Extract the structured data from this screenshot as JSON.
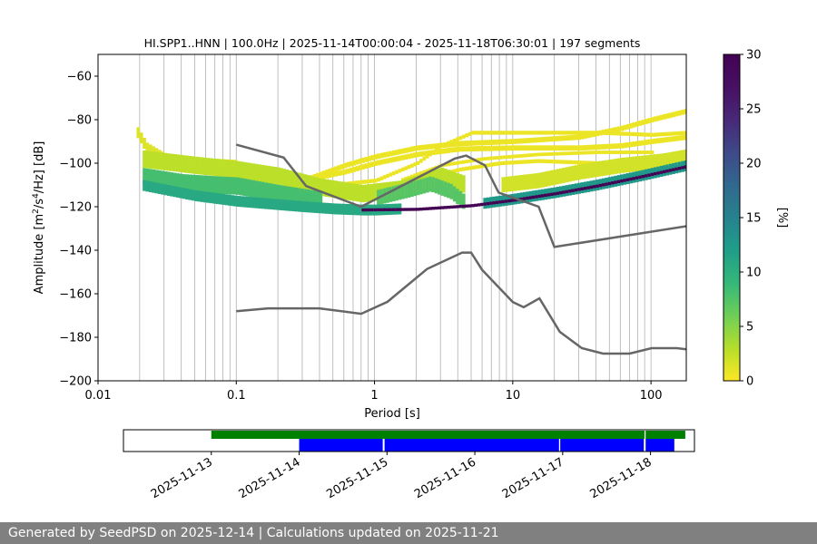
{
  "chart_data": [
    {
      "type": "heatmap",
      "title": "HI.SPP1..HNN | 100.0Hz | 2025-11-14T00:00:04 - 2025-11-18T06:30:01 | 197 segments",
      "xlabel": "Period [s]",
      "ylabel_main": "Amplitude [m",
      "ylabel_sup1": "2",
      "ylabel_mid": "/s",
      "ylabel_sup2": "4",
      "ylabel_end": "/Hz] [dB]",
      "x_scale": "log",
      "xlim": [
        0.01,
        180
      ],
      "ylim": [
        -200,
        -50
      ],
      "x_ticks": [
        {
          "value": 0.01,
          "label": "0.01"
        },
        {
          "value": 0.1,
          "label": "0.1"
        },
        {
          "value": 1,
          "label": "1"
        },
        {
          "value": 10,
          "label": "10"
        },
        {
          "value": 100,
          "label": "100"
        }
      ],
      "y_ticks": [
        {
          "value": -60,
          "label": "−60"
        },
        {
          "value": -80,
          "label": "−80"
        },
        {
          "value": -100,
          "label": "−100"
        },
        {
          "value": -120,
          "label": "−120"
        },
        {
          "value": -140,
          "label": "−140"
        },
        {
          "value": -160,
          "label": "−160"
        },
        {
          "value": -180,
          "label": "−180"
        },
        {
          "value": -200,
          "label": "−200"
        }
      ],
      "grid": "vertical lines at log-scale periods",
      "grid_periods": [
        0.02,
        0.03,
        0.04,
        0.05,
        0.06,
        0.07,
        0.08,
        0.09,
        0.1,
        0.2,
        0.3,
        0.4,
        0.5,
        0.6,
        0.7,
        0.8,
        0.9,
        1,
        2,
        3,
        4,
        5,
        6,
        7,
        8,
        9,
        10,
        20,
        30,
        40,
        50,
        60,
        70,
        80,
        90,
        100
      ],
      "colorbar": {
        "label": "[%]",
        "range": [
          0,
          30
        ],
        "ticks": [
          {
            "value": 0,
            "label": "0"
          },
          {
            "value": 5,
            "label": "5"
          },
          {
            "value": 10,
            "label": "10"
          },
          {
            "value": 15,
            "label": "15"
          },
          {
            "value": 20,
            "label": "20"
          },
          {
            "value": 25,
            "label": "25"
          },
          {
            "value": 30,
            "label": "30"
          }
        ],
        "colormap": "viridis_r"
      },
      "noise_model_color": "#666666",
      "high_noise_model": [
        [
          0.1,
          -91.5
        ],
        [
          0.22,
          -97.4
        ],
        [
          0.32,
          -110.5
        ],
        [
          0.8,
          -120
        ],
        [
          3.8,
          -97.9
        ],
        [
          4.6,
          -96.5
        ],
        [
          6.3,
          -101
        ],
        [
          7.9,
          -113.5
        ],
        [
          15.4,
          -120
        ],
        [
          20,
          -138.5
        ],
        [
          354.8,
          -126
        ],
        [
          10000.0,
          -80.1
        ]
      ],
      "low_noise_model": [
        [
          0.1,
          -168
        ],
        [
          0.17,
          -166.7
        ],
        [
          0.4,
          -166.7
        ],
        [
          0.8,
          -169.2
        ],
        [
          1.24,
          -163.7
        ],
        [
          2.4,
          -148.6
        ],
        [
          4.3,
          -141.1
        ],
        [
          5,
          -141.1
        ],
        [
          6,
          -149
        ],
        [
          10,
          -163.8
        ],
        [
          12,
          -166.2
        ],
        [
          15.6,
          -162.1
        ],
        [
          21.9,
          -177.5
        ],
        [
          31.6,
          -185
        ],
        [
          45,
          -187.5
        ],
        [
          70,
          -187.5
        ],
        [
          101,
          -185
        ],
        [
          154,
          -185
        ],
        [
          328,
          -187.5
        ]
      ],
      "density_bands": [
        {
          "name": "mode",
          "pct": 30,
          "points": [
            [
              0.8,
              -121.5
            ],
            [
              2,
              -121.2
            ],
            [
              5,
              -119.5
            ],
            [
              10,
              -117
            ],
            [
              20,
              -114
            ],
            [
              40,
              -110.5
            ],
            [
              80,
              -106.5
            ],
            [
              180,
              -101.5
            ]
          ],
          "halfwidth": 0.7
        },
        {
          "name": "body-low",
          "pct": 12,
          "points": [
            [
              0.02,
              -110
            ],
            [
              0.05,
              -115
            ],
            [
              0.1,
              -117.5
            ],
            [
              0.3,
              -120
            ],
            [
              0.5,
              -121
            ],
            [
              0.8,
              -121.5
            ],
            [
              1,
              -121.5
            ],
            [
              1.5,
              -121
            ]
          ],
          "halfwidth": 2.5
        },
        {
          "name": "mode-halo",
          "pct": 14,
          "points": [
            [
              6,
              -118.5
            ],
            [
              10,
              -116.5
            ],
            [
              20,
              -113.5
            ],
            [
              40,
              -110
            ],
            [
              80,
              -106
            ],
            [
              180,
              -101
            ]
          ],
          "halfwidth": 2.5
        },
        {
          "name": "hf-green",
          "pct": 9,
          "points": [
            [
              0.02,
              -106
            ],
            [
              0.04,
              -109
            ],
            [
              0.07,
              -110
            ],
            [
              0.1,
              -110.5
            ],
            [
              0.2,
              -114
            ],
            [
              0.4,
              -117
            ]
          ],
          "halfwidth": 4
        },
        {
          "name": "microseism",
          "pct": 8,
          "points": [
            [
              1,
              -116
            ],
            [
              1.8,
              -112
            ],
            [
              2.5,
              -109.5
            ],
            [
              3.5,
              -113
            ],
            [
              4.5,
              -118.5
            ]
          ],
          "halfwidth": 3.5
        },
        {
          "name": "hf-upper",
          "pct": 3,
          "points": [
            [
              0.02,
              -98
            ],
            [
              0.05,
              -101
            ],
            [
              0.1,
              -103
            ],
            [
              0.2,
              -106
            ],
            [
              0.4,
              -111
            ],
            [
              0.8,
              -114
            ],
            [
              1.5,
              -112
            ],
            [
              3,
              -106
            ],
            [
              4.5,
              -110
            ]
          ],
          "halfwidth": 4
        },
        {
          "name": "hf-top",
          "pct": 1.5,
          "points": [
            [
              0.019,
              -86
            ],
            [
              0.022,
              -93
            ],
            [
              0.03,
              -98
            ],
            [
              0.05,
              -100
            ],
            [
              0.1,
              -101
            ]
          ],
          "halfwidth": 2.5
        },
        {
          "name": "lp-upper",
          "pct": 2,
          "points": [
            [
              8,
              -110
            ],
            [
              15,
              -108
            ],
            [
              30,
              -104
            ],
            [
              60,
              -101
            ],
            [
              120,
              -99
            ],
            [
              180,
              -97
            ]
          ],
          "halfwidth": 3.5
        },
        {
          "name": "outlier-1",
          "pct": 0.8,
          "points": [
            [
              0.3,
              -108
            ],
            [
              0.6,
              -101
            ],
            [
              1,
              -97
            ],
            [
              2,
              -93
            ],
            [
              4,
              -91
            ],
            [
              10,
              -90
            ],
            [
              30,
              -88
            ],
            [
              60,
              -84
            ],
            [
              100,
              -80
            ],
            [
              180,
              -76
            ]
          ],
          "halfwidth": 1.2
        },
        {
          "name": "outlier-2",
          "pct": 0.8,
          "points": [
            [
              0.3,
              -108
            ],
            [
              0.6,
              -104
            ],
            [
              1,
              -100
            ],
            [
              2,
              -96
            ],
            [
              4,
              -93.5
            ],
            [
              10,
              -93
            ],
            [
              30,
              -93
            ],
            [
              60,
              -92
            ],
            [
              100,
              -90
            ],
            [
              180,
              -88
            ]
          ],
          "halfwidth": 1.2
        },
        {
          "name": "outlier-3",
          "pct": 0.8,
          "points": [
            [
              0.5,
              -110
            ],
            [
              1,
              -108
            ],
            [
              2,
              -100
            ],
            [
              3,
              -92
            ],
            [
              5,
              -86
            ],
            [
              10,
              -86
            ],
            [
              40,
              -86
            ],
            [
              100,
              -87
            ],
            [
              180,
              -86
            ]
          ],
          "halfwidth": 0.9
        },
        {
          "name": "outlier-4",
          "pct": 0.8,
          "points": [
            [
              1,
              -114
            ],
            [
              2,
              -108
            ],
            [
              4,
              -103
            ],
            [
              8,
              -100
            ],
            [
              15,
              -99
            ],
            [
              40,
              -100
            ],
            [
              100,
              -98
            ],
            [
              180,
              -96
            ]
          ],
          "halfwidth": 0.9
        },
        {
          "name": "outlier-5",
          "pct": 0.8,
          "points": [
            [
              1.5,
              -108
            ],
            [
              3,
              -101
            ],
            [
              6,
              -98
            ],
            [
              15,
              -96
            ],
            [
              40,
              -95
            ],
            [
              100,
              -95
            ]
          ],
          "halfwidth": 0.8
        }
      ]
    },
    {
      "type": "timeline",
      "x_ticks": [
        {
          "value": "2025-11-13",
          "label": "2025-11-13"
        },
        {
          "value": "2025-11-14",
          "label": "2025-11-14"
        },
        {
          "value": "2025-11-15",
          "label": "2025-11-15"
        },
        {
          "value": "2025-11-16",
          "label": "2025-11-16"
        },
        {
          "value": "2025-11-17",
          "label": "2025-11-17"
        },
        {
          "value": "2025-11-18",
          "label": "2025-11-18"
        }
      ],
      "xlim": [
        "2025-11-12T00:00",
        "2025-11-18T12:00"
      ],
      "data_available": {
        "color": "#008000",
        "segments": [
          {
            "start": "2025-11-13T00:00",
            "end": "2025-11-17T22:20"
          },
          {
            "start": "2025-11-17T22:40",
            "end": "2025-11-18T09:30"
          }
        ]
      },
      "psd_computed": {
        "color": "#0000ff",
        "segments": [
          {
            "start": "2025-11-14T00:00",
            "end": "2025-11-14T22:50"
          },
          {
            "start": "2025-11-14T23:20",
            "end": "2025-11-16T23:00"
          },
          {
            "start": "2025-11-16T23:20",
            "end": "2025-11-17T22:10"
          },
          {
            "start": "2025-11-17T22:40",
            "end": "2025-11-18T06:30"
          }
        ]
      }
    }
  ],
  "footer": {
    "text": "Generated by SeedPSD on 2025-12-14 | Calculations updated on 2025-11-21"
  }
}
